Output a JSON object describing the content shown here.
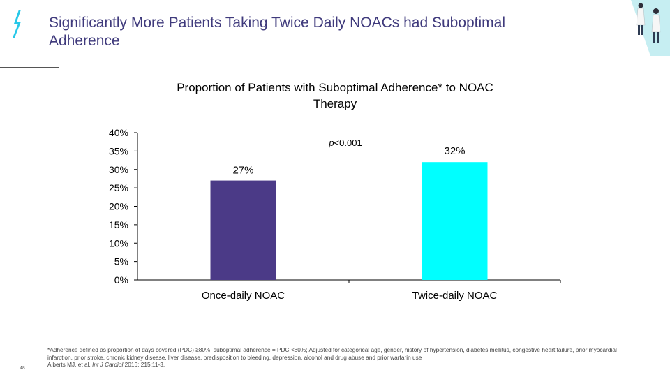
{
  "slide": {
    "title": "Significantly More Patients Taking Twice Daily NOACs had Suboptimal Adherence",
    "page_number": "48",
    "accent_color": "#3f3a7c",
    "logo_icon": "lightning-bolt-icon",
    "corner_image": "doctors-illustration-icon"
  },
  "chart_data": {
    "type": "bar",
    "title": "Proportion of Patients with Suboptimal Adherence* to NOAC Therapy",
    "categories": [
      "Once-daily NOAC",
      "Twice-daily NOAC"
    ],
    "values": [
      27,
      32
    ],
    "value_labels": [
      "27%",
      "32%"
    ],
    "colors": [
      "#4b3a87",
      "#00ffff"
    ],
    "ylim": [
      0,
      40
    ],
    "yticks": [
      "0%",
      "5%",
      "10%",
      "15%",
      "20%",
      "25%",
      "30%",
      "35%",
      "40%"
    ],
    "ytick_values": [
      0,
      5,
      10,
      15,
      20,
      25,
      30,
      35,
      40
    ],
    "xlabel": "",
    "ylabel": "",
    "grid": false,
    "annotation": {
      "prefix": "p",
      "text": "<0.001"
    }
  },
  "footnote": {
    "line1": "*Adherence defined as proportion of days covered (PDC) ≥80%; suboptimal adherence = PDC <80%; Adjusted for categorical age, gender, history of hypertension, diabetes mellitus, congestive heart failure, prior myocardial infarction, prior stroke, chronic kidney disease, liver disease, predisposition to bleeding, depression, alcohol and drug abuse and prior warfarin use",
    "citation_authors": "Alberts MJ, et al. ",
    "citation_journal": "Int J Cardiol",
    "citation_rest": " 2016; 215:11-3."
  }
}
